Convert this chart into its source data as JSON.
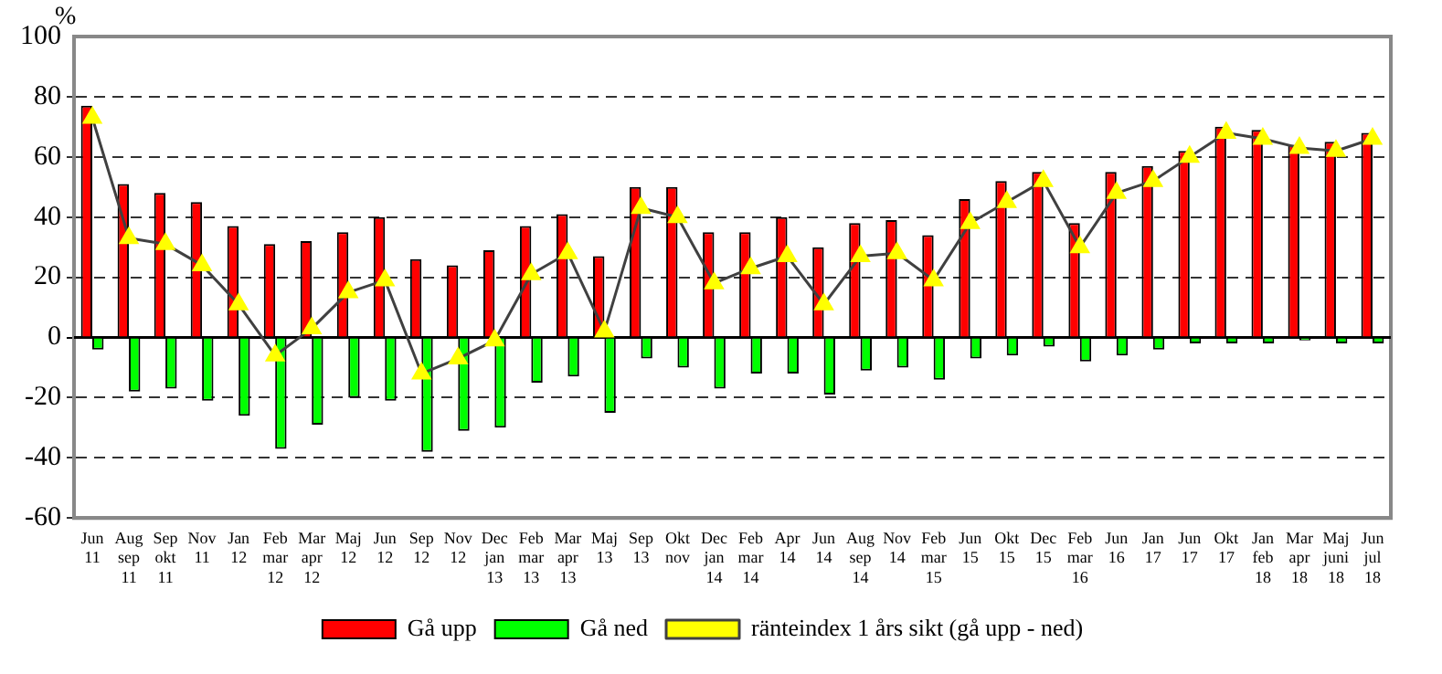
{
  "chart_data": {
    "type": "bar",
    "ylabel": "%",
    "categories": [
      "Jun\n11",
      "Aug\nsep\n11",
      "Sep\nokt\n11",
      "Nov\n11",
      "Jan\n12",
      "Feb\nmar\n12",
      "Mar\napr\n12",
      "Maj\n12",
      "Jun\n12",
      "Sep\n12",
      "Nov\n12",
      "Dec\njan\n13",
      "Feb\nmar\n13",
      "Mar\napr\n13",
      "Maj\n13",
      "Sep\n13",
      "Okt\nnov",
      "Dec\njan\n14",
      "Feb\nmar\n14",
      "Apr\n14",
      "Jun\n14",
      "Aug\nsep\n14",
      "Nov\n14",
      "Feb\nmar\n15",
      "Jun\n15",
      "Okt\n15",
      "Dec\n15",
      "Feb\nmar\n16",
      "Jun\n16",
      "Jan\n17",
      "Jun\n17",
      "Okt\n17",
      "Jan\nfeb\n18",
      "Mar\napr\n18",
      "Maj\njuni\n18",
      "Jun\njul\n18"
    ],
    "series": [
      {
        "name": "Gå upp",
        "color": "#ff0000",
        "values": [
          77,
          51,
          48,
          45,
          37,
          31,
          32,
          35,
          40,
          26,
          24,
          29,
          37,
          41,
          27,
          50,
          50,
          35,
          35,
          40,
          30,
          38,
          39,
          34,
          46,
          52,
          55,
          38,
          55,
          57,
          62,
          70,
          69,
          64,
          65,
          68
        ]
      },
      {
        "name": "Gå ned",
        "color": "#00ff00",
        "values": [
          -4,
          -18,
          -17,
          -21,
          -26,
          -37,
          -29,
          -20,
          -21,
          -38,
          -31,
          -30,
          -15,
          -13,
          -25,
          -7,
          -10,
          -17,
          -12,
          -12,
          -19,
          -11,
          -10,
          -14,
          -7,
          -6,
          -3,
          -8,
          -6,
          -4,
          -2,
          -2,
          -2,
          -1,
          -2,
          -2
        ]
      },
      {
        "name": "ränteindex 1 års sikt (gå upp - ned)",
        "type": "line",
        "color": "#ffff00",
        "marker": "triangle",
        "values": [
          73,
          33,
          31,
          24,
          11,
          -6,
          3,
          15,
          19,
          -12,
          -7,
          -1,
          21,
          28,
          2,
          43,
          40,
          18,
          23,
          27,
          11,
          27,
          28,
          19,
          38,
          45,
          52,
          30,
          48,
          52,
          60,
          68,
          66,
          63,
          62,
          66
        ]
      }
    ],
    "ylim": [
      -60,
      100
    ],
    "yticks": [
      -60,
      -40,
      -20,
      0,
      20,
      40,
      60,
      80,
      100
    ],
    "grid": "y",
    "legend": "bottom"
  }
}
